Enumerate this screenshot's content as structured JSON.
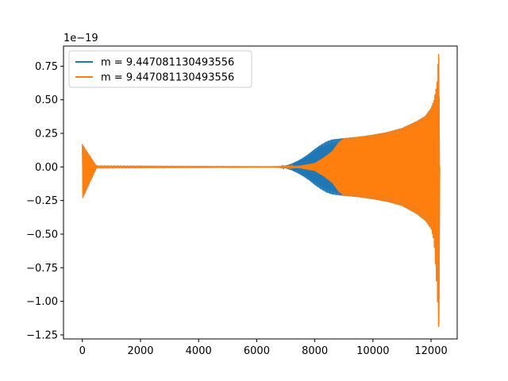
{
  "chart_data": {
    "type": "line",
    "title": "",
    "xlabel": "",
    "ylabel": "",
    "y_offset_label": "1e−19",
    "xlim": [
      -650,
      12900
    ],
    "ylim": [
      -1.28,
      0.9
    ],
    "x_ticks": [
      0,
      2000,
      4000,
      6000,
      8000,
      10000,
      12000
    ],
    "x_tick_labels": [
      "0",
      "2000",
      "4000",
      "6000",
      "8000",
      "10000",
      "12000"
    ],
    "y_ticks": [
      0.75,
      0.5,
      0.25,
      0.0,
      -0.25,
      -0.5,
      -0.75,
      -1.0,
      -1.25
    ],
    "y_tick_labels": [
      "0.75",
      "0.50",
      "0.25",
      "0.00",
      "−0.25",
      "−0.50",
      "−0.75",
      "−1.00",
      "−1.25"
    ],
    "grid": false,
    "legend_position": "upper-left",
    "series": [
      {
        "name": "m = 9.447081130493556",
        "color": "#1f77b4",
        "envelope_x": [
          0,
          500,
          6500,
          6800,
          7000,
          7200,
          7400,
          7600,
          7800,
          8000,
          8200,
          8400,
          8600,
          8800,
          9000,
          9500,
          10000,
          10500,
          11000,
          11500,
          11800,
          12000,
          12100,
          12200,
          12260,
          12300
        ],
        "envelope_upper": [
          0.17,
          0.005,
          0.002,
          0.003,
          0.01,
          0.025,
          0.045,
          0.07,
          0.1,
          0.135,
          0.165,
          0.19,
          0.205,
          0.21,
          0.215,
          0.225,
          0.24,
          0.26,
          0.29,
          0.34,
          0.38,
          0.44,
          0.5,
          0.62,
          0.84,
          0.05
        ],
        "envelope_lower": [
          -0.24,
          -0.005,
          -0.002,
          -0.003,
          -0.01,
          -0.025,
          -0.045,
          -0.07,
          -0.1,
          -0.135,
          -0.165,
          -0.19,
          -0.205,
          -0.21,
          -0.215,
          -0.225,
          -0.24,
          -0.26,
          -0.29,
          -0.35,
          -0.4,
          -0.46,
          -0.55,
          -0.9,
          -1.19,
          -0.05
        ]
      },
      {
        "name": "m = 9.447081130493556",
        "color": "#ff7f0e",
        "envelope_x": [
          0,
          500,
          6500,
          7000,
          7500,
          8000,
          8300,
          8600,
          8800,
          9000,
          9500,
          10000,
          10500,
          11000,
          11500,
          11800,
          12000,
          12100,
          12200,
          12260,
          12300
        ],
        "envelope_upper": [
          0.17,
          0.005,
          0.002,
          0.005,
          0.01,
          0.03,
          0.07,
          0.12,
          0.18,
          0.215,
          0.225,
          0.24,
          0.26,
          0.29,
          0.34,
          0.38,
          0.44,
          0.5,
          0.62,
          0.84,
          0.05
        ],
        "envelope_lower": [
          -0.24,
          -0.005,
          -0.002,
          -0.005,
          -0.01,
          -0.03,
          -0.07,
          -0.12,
          -0.18,
          -0.215,
          -0.225,
          -0.24,
          -0.26,
          -0.29,
          -0.35,
          -0.4,
          -0.46,
          -0.55,
          -0.9,
          -1.19,
          -0.05
        ]
      }
    ]
  }
}
